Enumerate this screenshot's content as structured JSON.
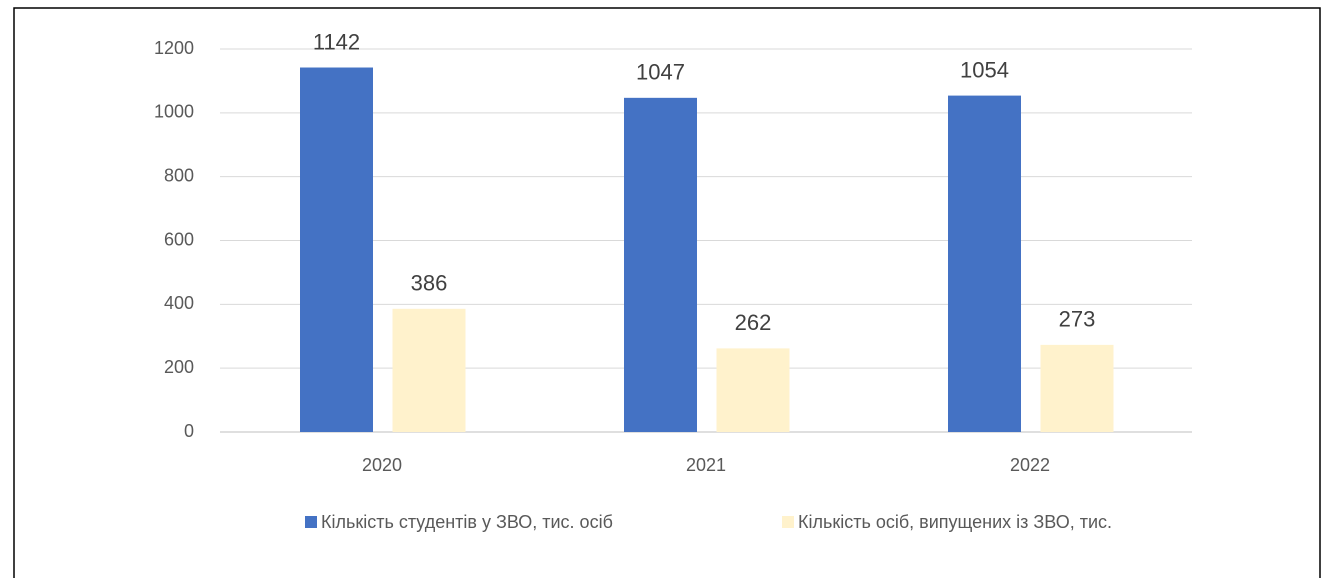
{
  "chart_data": {
    "type": "bar",
    "categories": [
      "2020",
      "2021",
      "2022"
    ],
    "series": [
      {
        "name": "Кількість студентів у ЗВО, тис. осіб",
        "color": "#4472c4",
        "values": [
          1142,
          1047,
          1054
        ]
      },
      {
        "name": "Кількість осіб, випущених із ЗВО, тис.",
        "color": "#fff2cc",
        "values": [
          386,
          262,
          273
        ]
      }
    ],
    "ylim": [
      0,
      1200
    ],
    "yticks": [
      0,
      200,
      400,
      600,
      800,
      1000,
      1200
    ],
    "grid": true,
    "legend": "bottom"
  }
}
